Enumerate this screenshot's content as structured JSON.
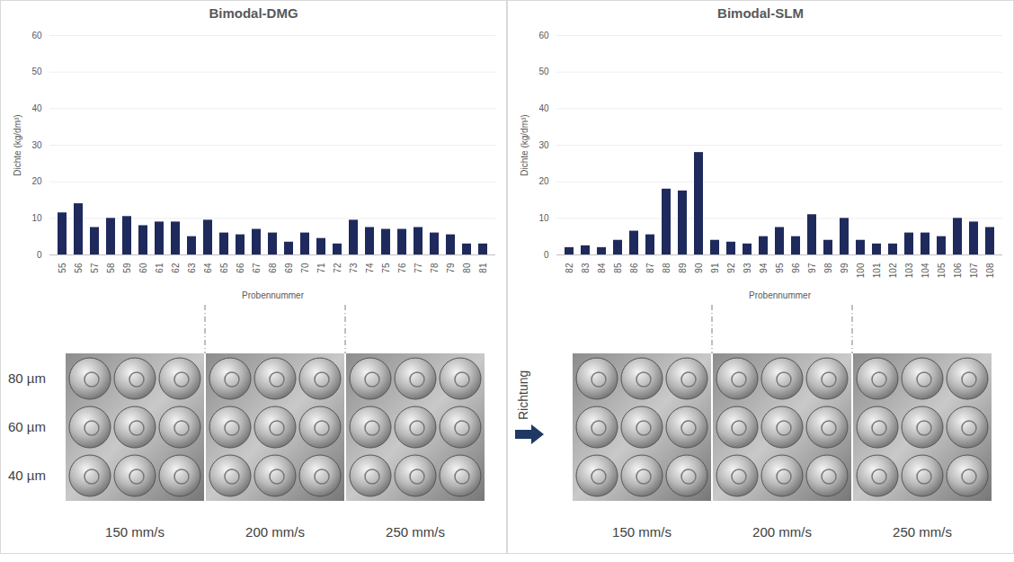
{
  "chart_data": [
    {
      "type": "bar",
      "title": "Bimodal-DMG",
      "categories": [
        "55",
        "56",
        "57",
        "58",
        "59",
        "60",
        "61",
        "62",
        "63",
        "64",
        "65",
        "66",
        "67",
        "68",
        "69",
        "70",
        "71",
        "72",
        "73",
        "74",
        "75",
        "76",
        "77",
        "78",
        "79",
        "80",
        "81"
      ],
      "values": [
        11.5,
        14,
        7.5,
        10,
        10.5,
        8,
        9,
        9,
        5,
        9.5,
        6,
        5.5,
        7,
        6,
        3.5,
        6,
        4.5,
        3,
        9.5,
        7.5,
        7,
        7,
        7.5,
        6,
        5.5,
        3,
        3
      ],
      "color": "#1f2a5c",
      "x_label": "Probennummer",
      "y_label": "Dichte (kg/dm³)",
      "ylim": [
        0,
        60
      ],
      "yticks": [
        0,
        10,
        20,
        30,
        40,
        50,
        60
      ],
      "grid": true
    },
    {
      "type": "bar",
      "title": "Bimodal-SLM",
      "categories": [
        "82",
        "83",
        "84",
        "85",
        "86",
        "87",
        "88",
        "89",
        "90",
        "91",
        "92",
        "93",
        "94",
        "95",
        "96",
        "97",
        "98",
        "99",
        "100",
        "101",
        "102",
        "103",
        "104",
        "105",
        "106",
        "107",
        "108"
      ],
      "values": [
        2,
        2.5,
        2,
        4,
        6.5,
        5.5,
        18,
        17.5,
        28,
        4,
        3.5,
        3,
        5,
        7.5,
        5,
        11,
        4,
        10,
        4,
        3,
        3,
        6,
        6,
        5,
        10,
        9,
        7.5
      ],
      "color": "#1f2a5c",
      "x_label": "Probennummer",
      "y_label": "Dichte (kg/dm³)",
      "ylim": [
        0,
        60
      ],
      "yticks": [
        0,
        10,
        20,
        30,
        40,
        50,
        60
      ],
      "grid": true
    }
  ],
  "photo_panels": [
    {
      "row_labels": [
        "80 µm",
        "60 µm",
        "40 µm"
      ],
      "column_labels": [
        "150 mm/s",
        "200 mm/s",
        "250 mm/s"
      ]
    },
    {
      "direction_label": "Richtung",
      "column_labels": [
        "150 mm/s",
        "200 mm/s",
        "250 mm/s"
      ]
    }
  ]
}
